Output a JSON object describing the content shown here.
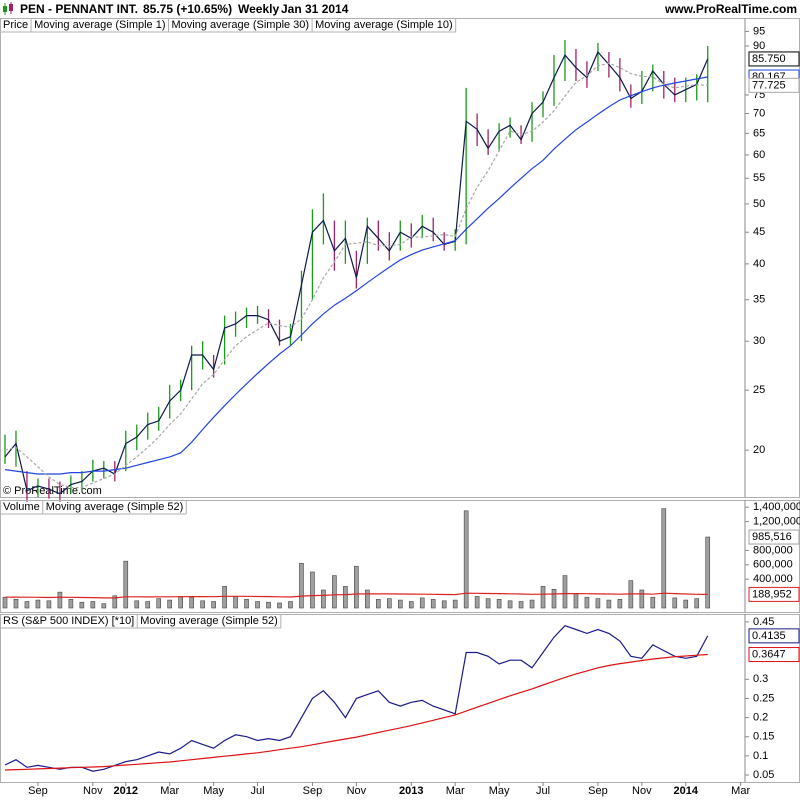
{
  "header": {
    "title": "PEN - PENNANT INT.",
    "quote": "85.75 (+10.65%)",
    "period": "Weekly",
    "date": "Jan 31 2014",
    "source": "www.ProRealTime.com",
    "watermark": "© ProRealTime.com"
  },
  "chart_data": [
    {
      "type": "price",
      "log_scale": true,
      "ylim": [
        16.8,
        95.5
      ],
      "yticks": [
        20,
        25,
        30,
        35,
        40,
        45,
        50,
        55,
        60,
        65,
        70,
        75,
        90,
        95
      ],
      "series": [
        {
          "name": "Price",
          "kind": "ohlc",
          "color": "#000000",
          "up_color": "#1a9a1a",
          "down_color": "#a0206a",
          "high": [
            21.2,
            21.5,
            18.5,
            18,
            18,
            17.8,
            18.2,
            18.5,
            19.3,
            19.2,
            19.2,
            21.5,
            22,
            23,
            23.5,
            25.5,
            26,
            29.5,
            30,
            28.5,
            33,
            33.5,
            34,
            34.2,
            33.8,
            32.5,
            32,
            39,
            49,
            52,
            47,
            47,
            42,
            47.5,
            47,
            45,
            47,
            46.5,
            48,
            47.5,
            45,
            45.5,
            77,
            70,
            66,
            67.5,
            69,
            67,
            73,
            76,
            87,
            92,
            89,
            85,
            91,
            88,
            86,
            78,
            82,
            84,
            82,
            80,
            80,
            81,
            90,
            null,
            null,
            null
          ],
          "low": [
            19,
            18.8,
            16.5,
            16.8,
            16.7,
            16.5,
            17,
            17.2,
            17.8,
            18,
            17.8,
            18.5,
            20,
            20.8,
            21.5,
            22.5,
            24,
            25,
            27,
            26.2,
            27.5,
            30.5,
            31.5,
            32,
            31.5,
            29.5,
            29.5,
            30,
            35,
            43,
            39,
            40,
            36.5,
            40,
            42,
            40.5,
            42,
            42.5,
            44,
            43.5,
            42,
            42,
            43,
            62,
            60,
            61,
            64,
            62.5,
            63,
            69,
            72,
            79,
            79,
            77,
            82,
            80,
            76,
            71.5,
            72.5,
            76,
            74,
            73,
            73,
            73.5,
            73,
            null,
            null,
            null
          ]
        },
        {
          "name": "Moving average (Simple 1)",
          "color": "#0a1a4a",
          "last_label": "85.750",
          "values": [
            19.5,
            20.5,
            17.2,
            17.5,
            17.3,
            17,
            17.6,
            17.8,
            18.5,
            18.7,
            18.3,
            20.5,
            21,
            22,
            22.3,
            24,
            25,
            28.5,
            28.5,
            27,
            31.5,
            32,
            33,
            33,
            32.5,
            30,
            30.5,
            37,
            45,
            47,
            42,
            44,
            38,
            46,
            44,
            42,
            45,
            44,
            46,
            45,
            43,
            43.5,
            68,
            66,
            61.5,
            65.5,
            67,
            63.5,
            70,
            73,
            80,
            87,
            83,
            80,
            88,
            84,
            80,
            74,
            76,
            82,
            78,
            75,
            76.5,
            78,
            85.75,
            null,
            null,
            null
          ]
        },
        {
          "name": "Moving average (Simple 30)",
          "color": "#2244dd",
          "last_label": "80.167",
          "values": [
            18.6,
            18.5,
            18.4,
            18.3,
            18.3,
            18.3,
            18.4,
            18.4,
            18.5,
            18.5,
            18.6,
            18.7,
            18.9,
            19.1,
            19.3,
            19.5,
            19.8,
            20.6,
            21.6,
            22.6,
            23.6,
            24.6,
            25.6,
            26.6,
            27.6,
            28.6,
            29.5,
            30.7,
            32,
            33.2,
            34.3,
            35.2,
            36.2,
            37.3,
            38.4,
            39.5,
            40.6,
            41.4,
            42.1,
            42.6,
            43.1,
            43.6,
            45.5,
            47.3,
            49.2,
            51,
            53,
            55,
            57,
            58.8,
            61.3,
            63.6,
            65.9,
            67.8,
            69.8,
            71.8,
            73.6,
            74.8,
            75.9,
            77,
            77.8,
            78.4,
            79,
            79.6,
            80.167,
            null,
            null,
            null
          ]
        },
        {
          "name": "Moving average (Simple 10)",
          "color": "#a8a8a8",
          "dashed": true,
          "last_label": "77.725",
          "values": [
            20,
            20.2,
            19.5,
            18.8,
            18.1,
            17.6,
            17.4,
            17.4,
            17.7,
            18,
            18.3,
            18.9,
            19.5,
            20.2,
            21,
            22,
            22.9,
            24.2,
            25.6,
            26.5,
            28,
            29.5,
            30.5,
            31.3,
            32.1,
            31.8,
            31.6,
            32.6,
            35,
            38,
            40.3,
            43,
            43.2,
            43.4,
            42.8,
            42.8,
            43,
            44.2,
            44.2,
            44.4,
            44.6,
            44.3,
            49.1,
            53.2,
            56.6,
            60.9,
            65.6,
            64.7,
            65.5,
            67.8,
            70.7,
            74.7,
            78.6,
            80.6,
            83.6,
            84.4,
            83,
            81.2,
            80.4,
            80.2,
            78,
            77,
            77.5,
            77.9,
            77.725,
            null,
            null,
            null
          ]
        }
      ]
    },
    {
      "type": "volume",
      "ylim": [
        0,
        1500000
      ],
      "yticks": [
        {
          "value": 400000,
          "label": "400,000"
        },
        {
          "value": 600000,
          "label": "600,000"
        },
        {
          "value": 800000,
          "label": "800,000"
        },
        {
          "value": 1200000,
          "label": "1,200,000"
        },
        {
          "value": 1400000,
          "label": "1,400,000"
        }
      ],
      "series": [
        {
          "name": "Volume",
          "kind": "bar",
          "color": "#a0a0a0",
          "last_label": "985,516",
          "values": [
            150000,
            120000,
            90000,
            110000,
            100000,
            220000,
            120000,
            80000,
            90000,
            60000,
            170000,
            650000,
            100000,
            90000,
            130000,
            110000,
            160000,
            150000,
            100000,
            90000,
            300000,
            160000,
            120000,
            90000,
            80000,
            70000,
            90000,
            620000,
            500000,
            250000,
            450000,
            300000,
            580000,
            250000,
            120000,
            130000,
            110000,
            90000,
            140000,
            120000,
            100000,
            110000,
            1350000,
            160000,
            130000,
            120000,
            100000,
            90000,
            110000,
            300000,
            260000,
            450000,
            200000,
            150000,
            130000,
            110000,
            120000,
            380000,
            250000,
            150000,
            1380000,
            140000,
            110000,
            130000,
            985516,
            null,
            null,
            null
          ]
        },
        {
          "name": "Moving average (Simple 52)",
          "color": "#dd2222",
          "last_label": "188,952",
          "values": [
            150000,
            152000,
            150000,
            148000,
            146000,
            150000,
            148000,
            146000,
            144000,
            140000,
            140000,
            155000,
            155000,
            154000,
            155000,
            155000,
            157000,
            158000,
            158000,
            157000,
            163000,
            163000,
            162000,
            160000,
            158000,
            155000,
            153000,
            165000,
            172000,
            175000,
            183000,
            186000,
            195000,
            197000,
            196000,
            196000,
            195000,
            193000,
            192000,
            190000,
            188000,
            186000,
            205000,
            204000,
            202000,
            200000,
            197000,
            194000,
            190000,
            192000,
            194000,
            200000,
            200000,
            198000,
            196000,
            194000,
            192000,
            196000,
            196000,
            192000,
            205000,
            200000,
            195000,
            190000,
            188952,
            null,
            null,
            null
          ]
        }
      ]
    },
    {
      "type": "line",
      "ylim": [
        0.0317,
        0.468
      ],
      "yticks": [
        0.05,
        0.1,
        0.15,
        0.2,
        0.25,
        0.3,
        0.45
      ],
      "categories": [
        null,
        null,
        null,
        "Sep",
        null,
        null,
        null,
        null,
        "Nov",
        null,
        null,
        "2012",
        null,
        null,
        null,
        "Mar",
        null,
        null,
        null,
        "May",
        null,
        null,
        null,
        "Jul",
        null,
        null,
        null,
        null,
        "Sep",
        null,
        null,
        null,
        "Nov",
        null,
        null,
        null,
        null,
        "2013",
        null,
        null,
        null,
        "Mar",
        null,
        null,
        null,
        "May",
        null,
        null,
        null,
        "Jul",
        null,
        null,
        null,
        null,
        "Sep",
        null,
        null,
        null,
        "Nov",
        null,
        null,
        null,
        "2014",
        null,
        null,
        null,
        null,
        "Mar"
      ],
      "series": [
        {
          "name": "RS (S&P 500 INDEX) [*10]",
          "color": "#1a1a8a",
          "last_label": "0.4135",
          "values": [
            0.076,
            0.09,
            0.07,
            0.075,
            0.07,
            0.065,
            0.07,
            0.07,
            0.06,
            0.065,
            0.075,
            0.085,
            0.09,
            0.1,
            0.11,
            0.105,
            0.12,
            0.14,
            0.13,
            0.12,
            0.14,
            0.155,
            0.15,
            0.14,
            0.145,
            0.14,
            0.15,
            0.2,
            0.25,
            0.27,
            0.24,
            0.2,
            0.25,
            0.26,
            0.27,
            0.24,
            0.23,
            0.24,
            0.245,
            0.23,
            0.22,
            0.21,
            0.37,
            0.37,
            0.36,
            0.34,
            0.35,
            0.35,
            0.33,
            0.37,
            0.41,
            0.44,
            0.43,
            0.42,
            0.43,
            0.42,
            0.4,
            0.36,
            0.355,
            0.39,
            0.375,
            0.36,
            0.355,
            0.36,
            0.4135,
            null,
            null,
            null
          ]
        },
        {
          "name": "Moving average (Simple 52)",
          "color": "#dd1111",
          "last_label": "0.3647",
          "values": [
            0.063,
            0.064,
            0.065,
            0.066,
            0.067,
            0.068,
            0.069,
            0.07,
            0.071,
            0.072,
            0.074,
            0.076,
            0.078,
            0.08,
            0.082,
            0.084,
            0.087,
            0.09,
            0.093,
            0.096,
            0.099,
            0.102,
            0.105,
            0.108,
            0.112,
            0.116,
            0.12,
            0.124,
            0.129,
            0.134,
            0.139,
            0.144,
            0.149,
            0.155,
            0.161,
            0.167,
            0.173,
            0.179,
            0.186,
            0.193,
            0.2,
            0.207,
            0.217,
            0.227,
            0.237,
            0.247,
            0.257,
            0.266,
            0.275,
            0.285,
            0.295,
            0.305,
            0.314,
            0.322,
            0.33,
            0.336,
            0.341,
            0.345,
            0.349,
            0.353,
            0.356,
            0.359,
            0.361,
            0.363,
            0.3647,
            null,
            null,
            null
          ]
        }
      ]
    }
  ]
}
